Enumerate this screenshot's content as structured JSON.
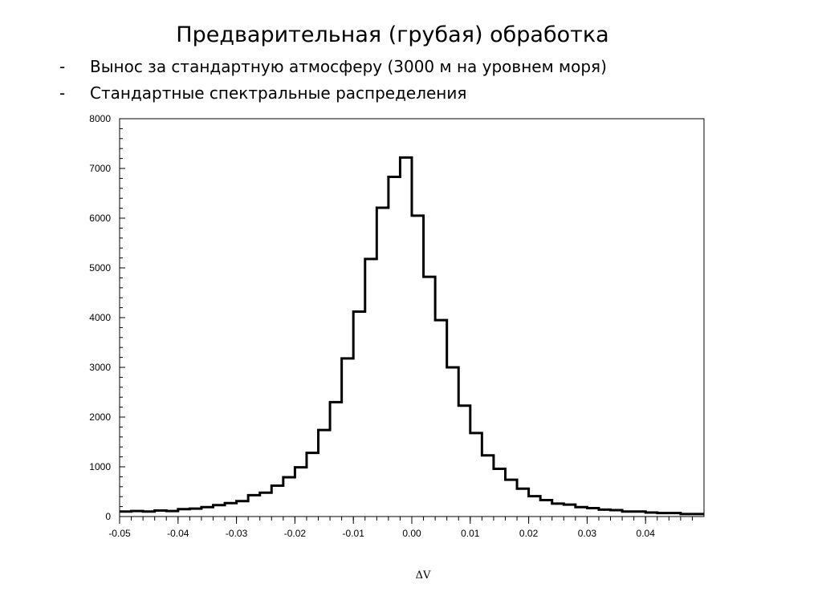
{
  "slide": {
    "title": "Предварительная (грубая) обработка",
    "bullets": [
      {
        "dash": "-",
        "text": "Вынос за стандартную атмосферу (3000 м на уровнем моря)"
      },
      {
        "dash": "-",
        "text": "Стандартные спектральные распределения"
      }
    ]
  },
  "chart_data": {
    "type": "bar",
    "title": "",
    "xlabel": "ΔV",
    "ylabel": "",
    "xlim": [
      -0.05,
      0.05
    ],
    "ylim": [
      0,
      8000
    ],
    "grid": false,
    "bin_width": 0.002,
    "bin_edges_start": -0.05,
    "values": [
      100,
      110,
      100,
      120,
      110,
      150,
      160,
      190,
      230,
      270,
      310,
      430,
      480,
      620,
      790,
      990,
      1280,
      1740,
      2300,
      3180,
      4120,
      5180,
      6210,
      6830,
      7220,
      6050,
      4820,
      3950,
      3000,
      2230,
      1680,
      1230,
      960,
      740,
      560,
      410,
      330,
      260,
      240,
      190,
      170,
      140,
      130,
      100,
      100,
      80,
      70,
      70,
      50,
      50
    ],
    "x_ticks": [
      -0.05,
      -0.04,
      -0.03,
      -0.02,
      -0.01,
      0.0,
      0.01,
      0.02,
      0.03,
      0.04
    ],
    "x_tick_labels": [
      "-0.05",
      "-0.04",
      "-0.03",
      "-0.02",
      "-0.01",
      "0.00",
      "0.01",
      "0.02",
      "0.03",
      "0.04"
    ],
    "y_ticks": [
      0,
      1000,
      2000,
      3000,
      4000,
      5000,
      6000,
      7000,
      8000
    ],
    "y_tick_labels": [
      "0",
      "1000",
      "2000",
      "3000",
      "4000",
      "5000",
      "6000",
      "7000",
      "8000"
    ]
  }
}
